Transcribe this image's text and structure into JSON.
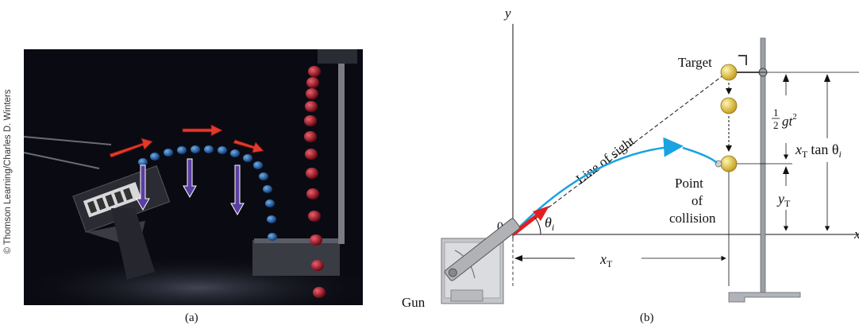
{
  "credit": "© Thomson Learning/Charles D. Winters",
  "captions": {
    "a": "(a)",
    "b": "(b)"
  },
  "labels": {
    "y_axis": "y",
    "x_axis": "x",
    "origin": "0",
    "target": "Target",
    "line_of_sight": "Line of sight",
    "point_of_collision_1": "Point",
    "point_of_collision_2": "of",
    "point_of_collision_3": "collision",
    "gun": "Gun",
    "theta_i": "θ",
    "theta_sub": "i",
    "xT": "x",
    "xT_sub": "T",
    "yT": "y",
    "yT_sub": "T",
    "half_num": "1",
    "half_den": "2",
    "gt2": "gt",
    "gt2_sup": "2",
    "xT_tan": "x",
    "xT_tan_sub": "T",
    "tan": "tan θ",
    "tan_sub": "i"
  },
  "colors": {
    "trajectory": "#1aa3e0",
    "velocity_arrow": "#e02020",
    "gravity_arrow": "#4a2a8a",
    "ball": "#e8c840"
  }
}
